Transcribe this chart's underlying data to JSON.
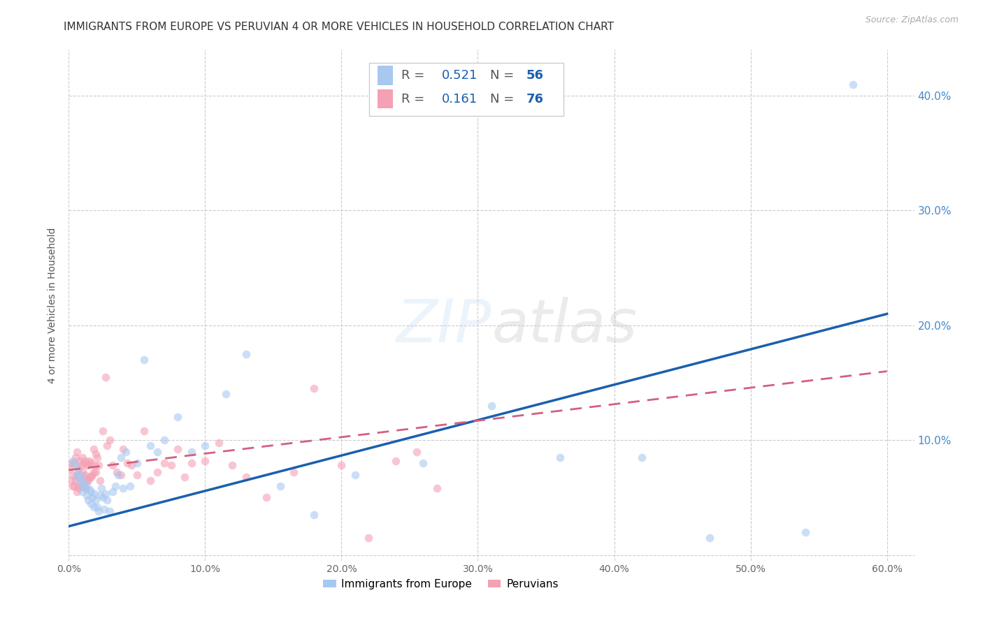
{
  "title": "IMMIGRANTS FROM EUROPE VS PERUVIAN 4 OR MORE VEHICLES IN HOUSEHOLD CORRELATION CHART",
  "source": "Source: ZipAtlas.com",
  "ylabel": "4 or more Vehicles in Household",
  "xlim": [
    0.0,
    0.62
  ],
  "ylim": [
    -0.005,
    0.44
  ],
  "xticks": [
    0.0,
    0.1,
    0.2,
    0.3,
    0.4,
    0.5,
    0.6
  ],
  "yticks_right": [
    0.0,
    0.1,
    0.2,
    0.3,
    0.4
  ],
  "blue_R": 0.521,
  "blue_N": 56,
  "pink_R": 0.161,
  "pink_N": 76,
  "blue_color": "#a8c8f0",
  "pink_color": "#f4a0b5",
  "blue_line_color": "#1a5fb0",
  "pink_line_color": "#d46080",
  "background_color": "#ffffff",
  "legend_label_blue": "Immigrants from Europe",
  "legend_label_pink": "Peruvians",
  "blue_scatter_x": [
    0.003,
    0.005,
    0.006,
    0.007,
    0.008,
    0.009,
    0.01,
    0.01,
    0.011,
    0.012,
    0.013,
    0.013,
    0.014,
    0.015,
    0.016,
    0.016,
    0.017,
    0.018,
    0.019,
    0.02,
    0.021,
    0.022,
    0.023,
    0.024,
    0.025,
    0.026,
    0.027,
    0.028,
    0.03,
    0.032,
    0.034,
    0.036,
    0.038,
    0.04,
    0.042,
    0.045,
    0.05,
    0.055,
    0.06,
    0.065,
    0.07,
    0.08,
    0.09,
    0.1,
    0.115,
    0.13,
    0.155,
    0.18,
    0.21,
    0.26,
    0.31,
    0.36,
    0.42,
    0.47,
    0.54,
    0.575
  ],
  "blue_scatter_y": [
    0.082,
    0.078,
    0.07,
    0.072,
    0.065,
    0.068,
    0.06,
    0.055,
    0.063,
    0.058,
    0.052,
    0.06,
    0.048,
    0.057,
    0.045,
    0.055,
    0.05,
    0.042,
    0.053,
    0.048,
    0.042,
    0.038,
    0.052,
    0.058,
    0.05,
    0.04,
    0.053,
    0.048,
    0.038,
    0.055,
    0.06,
    0.07,
    0.085,
    0.058,
    0.09,
    0.06,
    0.08,
    0.17,
    0.095,
    0.09,
    0.1,
    0.12,
    0.09,
    0.095,
    0.14,
    0.175,
    0.06,
    0.035,
    0.07,
    0.08,
    0.13,
    0.085,
    0.085,
    0.015,
    0.02,
    0.41
  ],
  "pink_scatter_x": [
    0.001,
    0.002,
    0.002,
    0.003,
    0.003,
    0.004,
    0.004,
    0.005,
    0.005,
    0.006,
    0.006,
    0.006,
    0.007,
    0.007,
    0.007,
    0.008,
    0.008,
    0.008,
    0.009,
    0.009,
    0.01,
    0.01,
    0.01,
    0.011,
    0.011,
    0.012,
    0.012,
    0.012,
    0.013,
    0.013,
    0.014,
    0.014,
    0.015,
    0.015,
    0.016,
    0.016,
    0.017,
    0.018,
    0.018,
    0.019,
    0.02,
    0.02,
    0.021,
    0.022,
    0.023,
    0.025,
    0.027,
    0.028,
    0.03,
    0.032,
    0.035,
    0.038,
    0.04,
    0.043,
    0.046,
    0.05,
    0.055,
    0.06,
    0.065,
    0.07,
    0.075,
    0.08,
    0.085,
    0.09,
    0.1,
    0.11,
    0.12,
    0.13,
    0.145,
    0.165,
    0.18,
    0.2,
    0.22,
    0.24,
    0.255,
    0.27
  ],
  "pink_scatter_y": [
    0.075,
    0.08,
    0.065,
    0.07,
    0.06,
    0.08,
    0.06,
    0.085,
    0.065,
    0.09,
    0.07,
    0.055,
    0.075,
    0.068,
    0.058,
    0.082,
    0.07,
    0.06,
    0.078,
    0.065,
    0.085,
    0.072,
    0.06,
    0.08,
    0.068,
    0.082,
    0.07,
    0.058,
    0.078,
    0.065,
    0.078,
    0.065,
    0.082,
    0.068,
    0.08,
    0.068,
    0.07,
    0.092,
    0.072,
    0.078,
    0.088,
    0.072,
    0.085,
    0.078,
    0.065,
    0.108,
    0.155,
    0.095,
    0.1,
    0.078,
    0.072,
    0.07,
    0.092,
    0.08,
    0.078,
    0.07,
    0.108,
    0.065,
    0.072,
    0.08,
    0.078,
    0.092,
    0.068,
    0.08,
    0.082,
    0.098,
    0.078,
    0.068,
    0.05,
    0.072,
    0.145,
    0.078,
    0.015,
    0.082,
    0.09,
    0.058
  ],
  "blue_line_x0": 0.0,
  "blue_line_y0": 0.025,
  "blue_line_x1": 0.6,
  "blue_line_y1": 0.21,
  "pink_line_x0": 0.0,
  "pink_line_y0": 0.074,
  "pink_line_x1": 0.6,
  "pink_line_y1": 0.16,
  "title_fontsize": 11,
  "axis_label_fontsize": 10,
  "tick_fontsize": 10,
  "dot_size": 70,
  "dot_alpha": 0.6
}
